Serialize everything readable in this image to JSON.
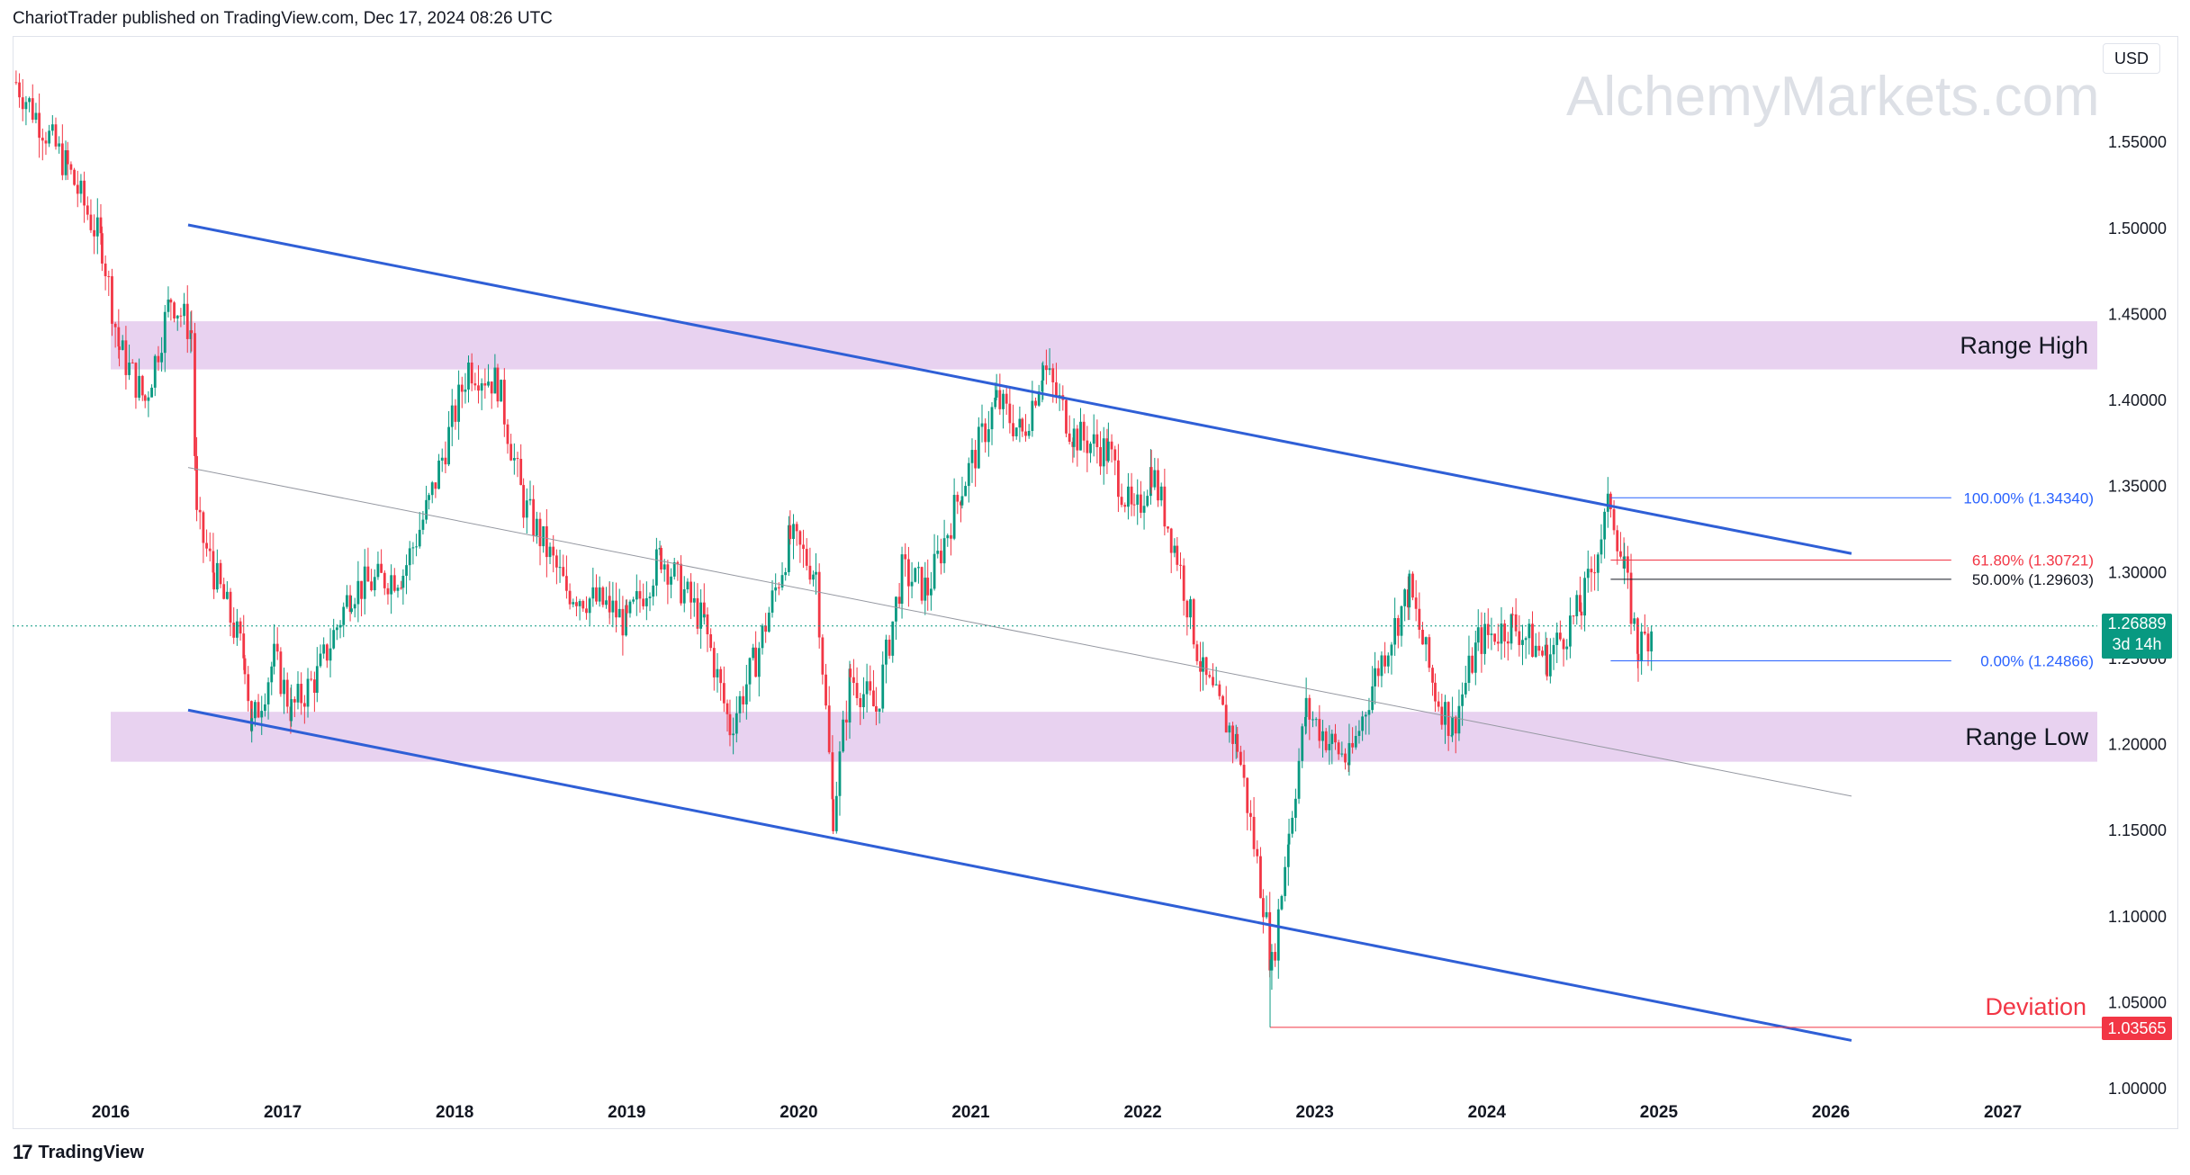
{
  "header": {
    "published": "ChariotTrader published on TradingView.com, Dec 17, 2024 08:26 UTC"
  },
  "watermark": "AlchemyMarkets.com",
  "currency": "USD",
  "footer": {
    "brand": "TradingView",
    "logo": "17"
  },
  "colors": {
    "up": "#089981",
    "down": "#f23645",
    "channel": "#2f5fd6",
    "zone": "#e8d2f0",
    "fib_100": "#2962ff",
    "fib_618": "#f23645",
    "fib_50": "#131722",
    "fib_0": "#2962ff"
  },
  "chart_data": {
    "type": "candlestick",
    "title": "",
    "xlabel": "",
    "ylabel": "",
    "x_ticks": [
      "2016",
      "2017",
      "2018",
      "2019",
      "2020",
      "2021",
      "2022",
      "2023",
      "2024",
      "2025",
      "2026",
      "2027"
    ],
    "y_ticks": [
      "1.00000",
      "1.05000",
      "1.10000",
      "1.15000",
      "1.20000",
      "1.25000",
      "1.30000",
      "1.35000",
      "1.40000",
      "1.45000",
      "1.50000",
      "1.55000"
    ],
    "ylim": [
      0.98,
      1.6
    ],
    "xlim": [
      2015.45,
      2027.9
    ],
    "grid": false,
    "last_price": {
      "value": "1.26889",
      "countdown": "3d 14h"
    },
    "zones": [
      {
        "label": "Range High",
        "from": 1.418,
        "to": 1.446,
        "x_start": 2016.0
      },
      {
        "label": "Range Low",
        "from": 1.19,
        "to": 1.219,
        "x_start": 2016.0
      }
    ],
    "channel": {
      "upper": [
        {
          "x": 2016.45,
          "y": 1.502
        },
        {
          "x": 2026.12,
          "y": 1.311
        }
      ],
      "lower": [
        {
          "x": 2016.45,
          "y": 1.22
        },
        {
          "x": 2026.12,
          "y": 1.028
        }
      ],
      "mid": [
        {
          "x": 2016.45,
          "y": 1.361
        },
        {
          "x": 2026.12,
          "y": 1.17
        }
      ]
    },
    "fibonacci": [
      {
        "label": "100.00% (1.34340)",
        "level": 1.3434
      },
      {
        "label": "61.80% (1.30721)",
        "level": 1.30721
      },
      {
        "label": "50.00% (1.29603)",
        "level": 1.29603
      },
      {
        "label": "0.00% (1.24866)",
        "level": 1.24866
      }
    ],
    "deviation": {
      "label": "Deviation",
      "value": "1.03565",
      "level": 1.03565,
      "x_start": 2022.74
    },
    "pivots": [
      {
        "x": 2015.45,
        "y": 1.585
      },
      {
        "x": 2015.75,
        "y": 1.535
      },
      {
        "x": 2015.95,
        "y": 1.49
      },
      {
        "x": 2016.05,
        "y": 1.43
      },
      {
        "x": 2016.2,
        "y": 1.4
      },
      {
        "x": 2016.35,
        "y": 1.46
      },
      {
        "x": 2016.47,
        "y": 1.44
      },
      {
        "x": 2016.5,
        "y": 1.33
      },
      {
        "x": 2016.6,
        "y": 1.3
      },
      {
        "x": 2016.78,
        "y": 1.25
      },
      {
        "x": 2016.82,
        "y": 1.21
      },
      {
        "x": 2016.95,
        "y": 1.25
      },
      {
        "x": 2017.05,
        "y": 1.22
      },
      {
        "x": 2017.2,
        "y": 1.24
      },
      {
        "x": 2017.4,
        "y": 1.29
      },
      {
        "x": 2017.7,
        "y": 1.3
      },
      {
        "x": 2017.85,
        "y": 1.34
      },
      {
        "x": 2018.08,
        "y": 1.42
      },
      {
        "x": 2018.25,
        "y": 1.41
      },
      {
        "x": 2018.4,
        "y": 1.34
      },
      {
        "x": 2018.65,
        "y": 1.29
      },
      {
        "x": 2018.9,
        "y": 1.28
      },
      {
        "x": 2019.0,
        "y": 1.27
      },
      {
        "x": 2019.2,
        "y": 1.31
      },
      {
        "x": 2019.45,
        "y": 1.27
      },
      {
        "x": 2019.6,
        "y": 1.21
      },
      {
        "x": 2019.75,
        "y": 1.25
      },
      {
        "x": 2019.95,
        "y": 1.32
      },
      {
        "x": 2020.1,
        "y": 1.3
      },
      {
        "x": 2020.2,
        "y": 1.16
      },
      {
        "x": 2020.3,
        "y": 1.24
      },
      {
        "x": 2020.45,
        "y": 1.22
      },
      {
        "x": 2020.6,
        "y": 1.3
      },
      {
        "x": 2020.75,
        "y": 1.29
      },
      {
        "x": 2020.95,
        "y": 1.35
      },
      {
        "x": 2021.15,
        "y": 1.4
      },
      {
        "x": 2021.3,
        "y": 1.38
      },
      {
        "x": 2021.42,
        "y": 1.42
      },
      {
        "x": 2021.6,
        "y": 1.38
      },
      {
        "x": 2021.8,
        "y": 1.37
      },
      {
        "x": 2021.95,
        "y": 1.33
      },
      {
        "x": 2022.05,
        "y": 1.36
      },
      {
        "x": 2022.2,
        "y": 1.31
      },
      {
        "x": 2022.35,
        "y": 1.24
      },
      {
        "x": 2022.55,
        "y": 1.2
      },
      {
        "x": 2022.7,
        "y": 1.11
      },
      {
        "x": 2022.75,
        "y": 1.07
      },
      {
        "x": 2022.85,
        "y": 1.15
      },
      {
        "x": 2022.95,
        "y": 1.22
      },
      {
        "x": 2023.1,
        "y": 1.2
      },
      {
        "x": 2023.2,
        "y": 1.19
      },
      {
        "x": 2023.35,
        "y": 1.24
      },
      {
        "x": 2023.55,
        "y": 1.29
      },
      {
        "x": 2023.7,
        "y": 1.23
      },
      {
        "x": 2023.8,
        "y": 1.21
      },
      {
        "x": 2023.95,
        "y": 1.26
      },
      {
        "x": 2024.15,
        "y": 1.27
      },
      {
        "x": 2024.35,
        "y": 1.25
      },
      {
        "x": 2024.55,
        "y": 1.28
      },
      {
        "x": 2024.72,
        "y": 1.342
      },
      {
        "x": 2024.8,
        "y": 1.3
      },
      {
        "x": 2024.88,
        "y": 1.255
      },
      {
        "x": 2024.96,
        "y": 1.269
      }
    ]
  }
}
